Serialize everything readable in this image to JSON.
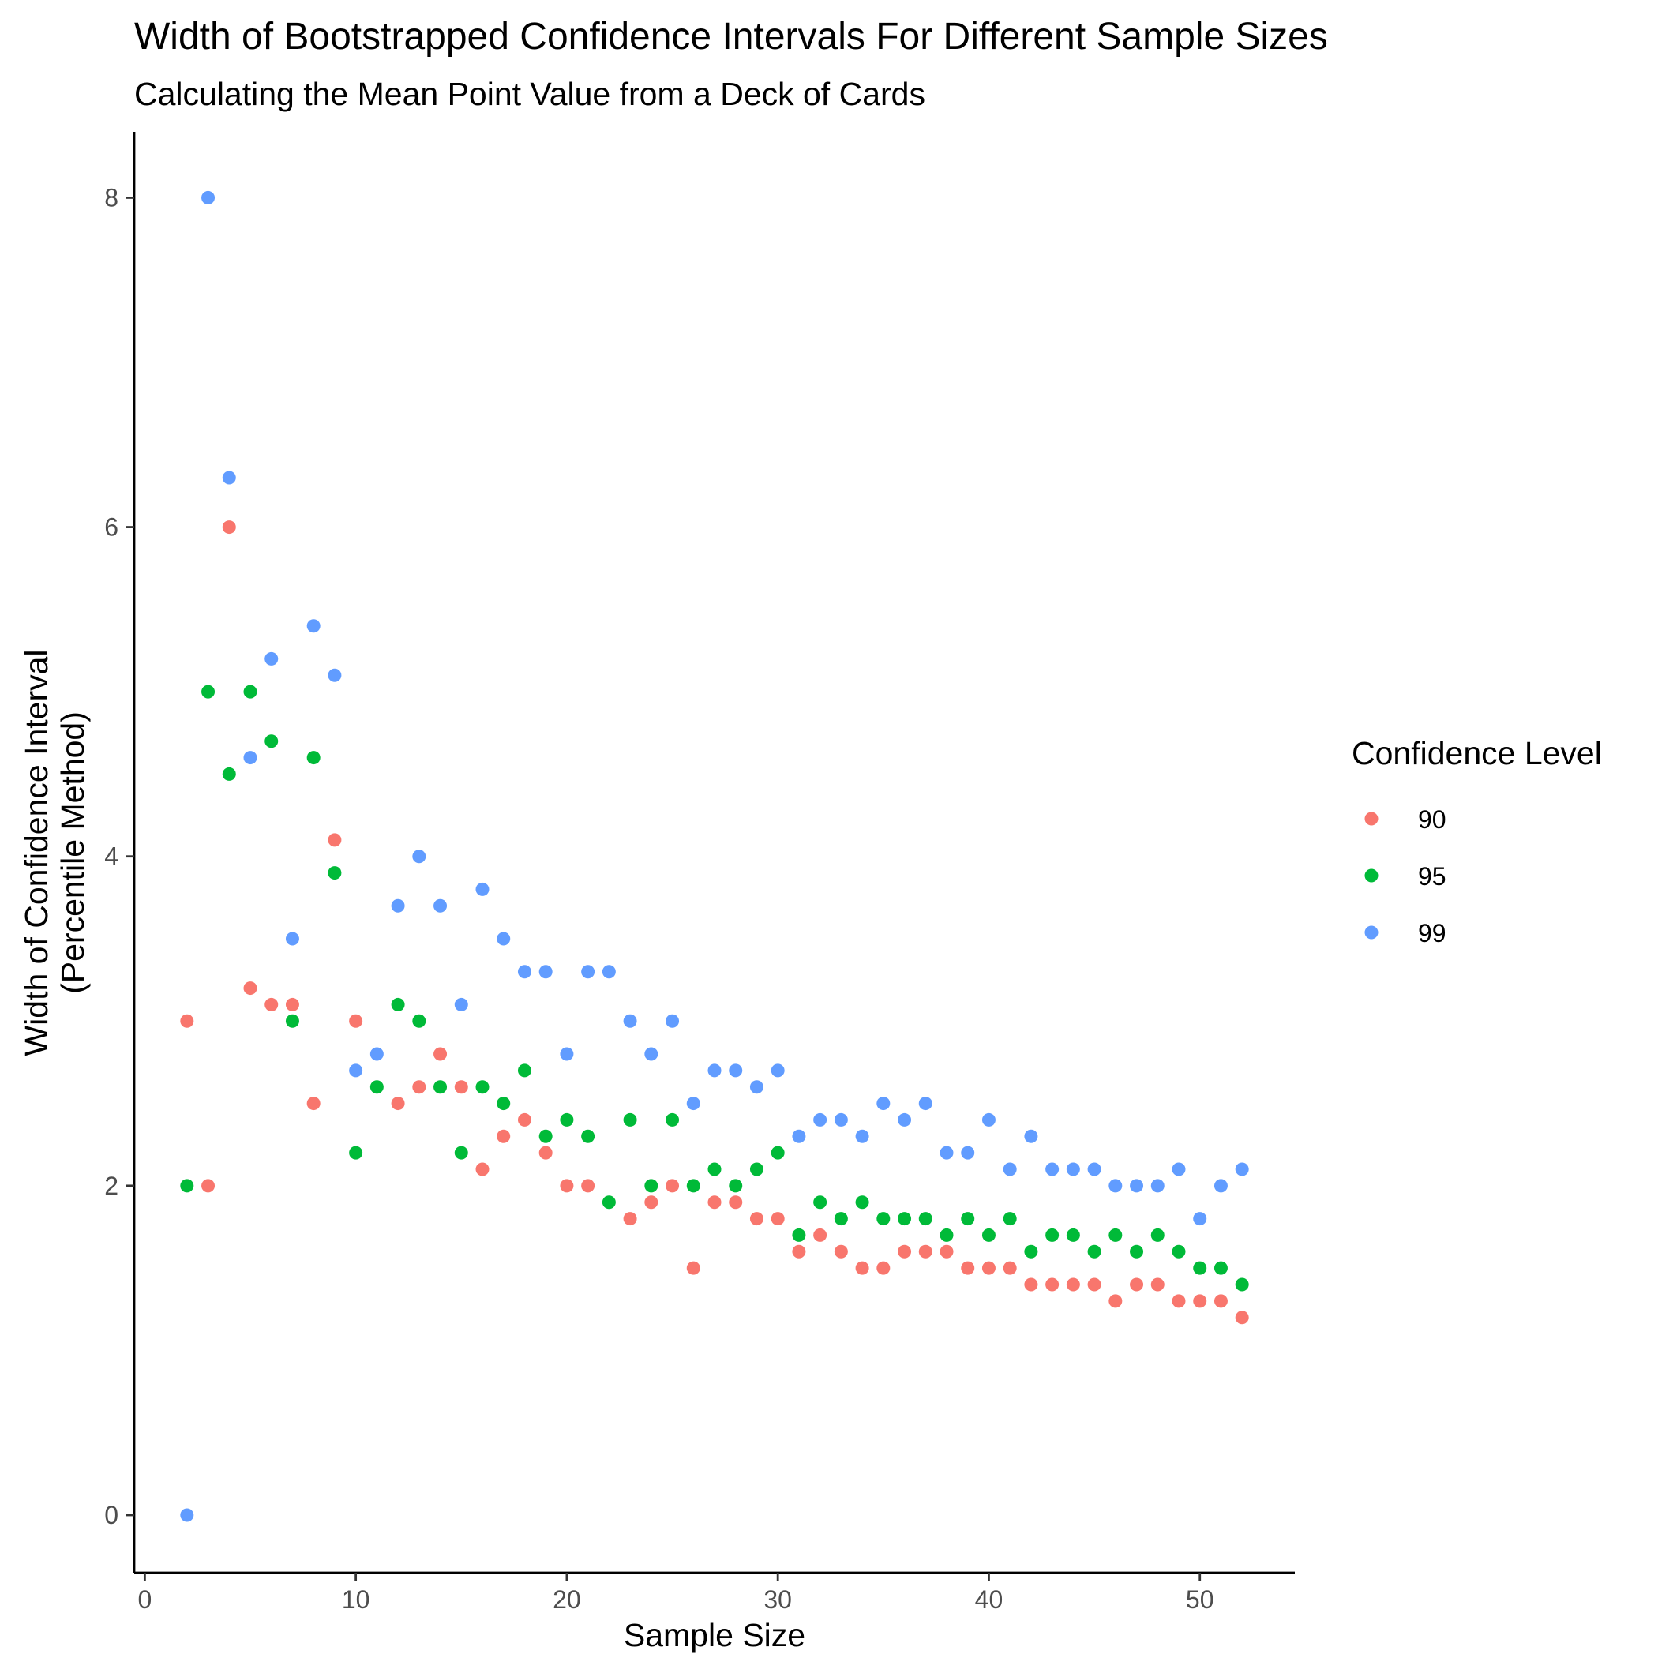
{
  "chart_data": {
    "type": "scatter",
    "title": "Width of Bootstrapped Confidence Intervals For Different Sample Sizes",
    "subtitle": "Calculating the Mean Point Value from a Deck of Cards",
    "xlabel": "Sample Size",
    "ylabel": [
      "Width of Confidence Interval",
      "(Percentile Method)"
    ],
    "xlim": [
      -0.5,
      54.5
    ],
    "ylim": [
      -0.35,
      8.4
    ],
    "xticks": [
      0,
      10,
      20,
      30,
      40,
      50
    ],
    "yticks": [
      0,
      2,
      4,
      6,
      8
    ],
    "grid": false,
    "legend": {
      "title": "Confidence Level",
      "position": "right"
    },
    "series": [
      {
        "name": "90",
        "color": "#F8766D",
        "x": [
          2,
          3,
          4,
          5,
          6,
          7,
          8,
          9,
          10,
          12,
          13,
          14,
          15,
          16,
          17,
          18,
          19,
          20,
          21,
          23,
          24,
          25,
          26,
          27,
          28,
          29,
          30,
          31,
          32,
          33,
          34,
          35,
          36,
          37,
          38,
          39,
          40,
          41,
          42,
          43,
          44,
          45,
          46,
          47,
          48,
          49,
          50,
          51,
          52
        ],
        "y": [
          3.0,
          2.0,
          6.0,
          3.2,
          3.1,
          3.1,
          2.5,
          4.1,
          3.0,
          2.5,
          2.6,
          2.8,
          2.6,
          2.1,
          2.3,
          2.4,
          2.2,
          2.0,
          2.0,
          1.8,
          1.9,
          2.0,
          1.5,
          1.9,
          1.9,
          1.8,
          1.8,
          1.6,
          1.7,
          1.6,
          1.5,
          1.5,
          1.6,
          1.6,
          1.6,
          1.5,
          1.5,
          1.5,
          1.4,
          1.4,
          1.4,
          1.4,
          1.3,
          1.4,
          1.4,
          1.3,
          1.3,
          1.3,
          1.2
        ]
      },
      {
        "name": "95",
        "color": "#00BA38",
        "x": [
          2,
          3,
          4,
          5,
          6,
          7,
          8,
          9,
          10,
          11,
          12,
          13,
          14,
          15,
          16,
          17,
          18,
          19,
          20,
          21,
          22,
          23,
          24,
          25,
          26,
          27,
          28,
          29,
          30,
          31,
          32,
          33,
          34,
          35,
          36,
          37,
          38,
          39,
          40,
          41,
          42,
          43,
          44,
          45,
          46,
          47,
          48,
          49,
          50,
          51,
          52
        ],
        "y": [
          2.0,
          5.0,
          4.5,
          5.0,
          4.7,
          3.0,
          4.6,
          3.9,
          2.2,
          2.6,
          3.1,
          3.0,
          2.6,
          2.2,
          2.6,
          2.5,
          2.7,
          2.3,
          2.4,
          2.3,
          1.9,
          2.4,
          2.0,
          2.4,
          2.0,
          2.1,
          2.0,
          2.1,
          2.2,
          1.7,
          1.9,
          1.8,
          1.9,
          1.8,
          1.8,
          1.8,
          1.7,
          1.8,
          1.7,
          1.8,
          1.6,
          1.7,
          1.7,
          1.6,
          1.7,
          1.6,
          1.7,
          1.6,
          1.5,
          1.5,
          1.4
        ]
      },
      {
        "name": "99",
        "color": "#619CFF",
        "x": [
          2,
          3,
          4,
          5,
          6,
          7,
          8,
          9,
          10,
          11,
          12,
          13,
          14,
          15,
          16,
          17,
          18,
          19,
          20,
          21,
          22,
          23,
          24,
          25,
          26,
          27,
          28,
          29,
          30,
          31,
          32,
          33,
          34,
          35,
          36,
          37,
          38,
          39,
          40,
          41,
          42,
          43,
          44,
          45,
          46,
          47,
          48,
          49,
          50,
          51,
          52
        ],
        "y": [
          0.0,
          8.0,
          6.3,
          4.6,
          5.2,
          3.5,
          5.4,
          5.1,
          2.7,
          2.8,
          3.7,
          4.0,
          3.7,
          3.1,
          3.8,
          3.5,
          3.3,
          3.3,
          2.8,
          3.3,
          3.3,
          3.0,
          2.8,
          3.0,
          2.5,
          2.7,
          2.7,
          2.6,
          2.7,
          2.3,
          2.4,
          2.4,
          2.3,
          2.5,
          2.4,
          2.5,
          2.2,
          2.2,
          2.4,
          2.1,
          2.3,
          2.1,
          2.1,
          2.1,
          2.0,
          2.0,
          2.0,
          2.1,
          1.8,
          2.0,
          2.1
        ]
      }
    ]
  }
}
